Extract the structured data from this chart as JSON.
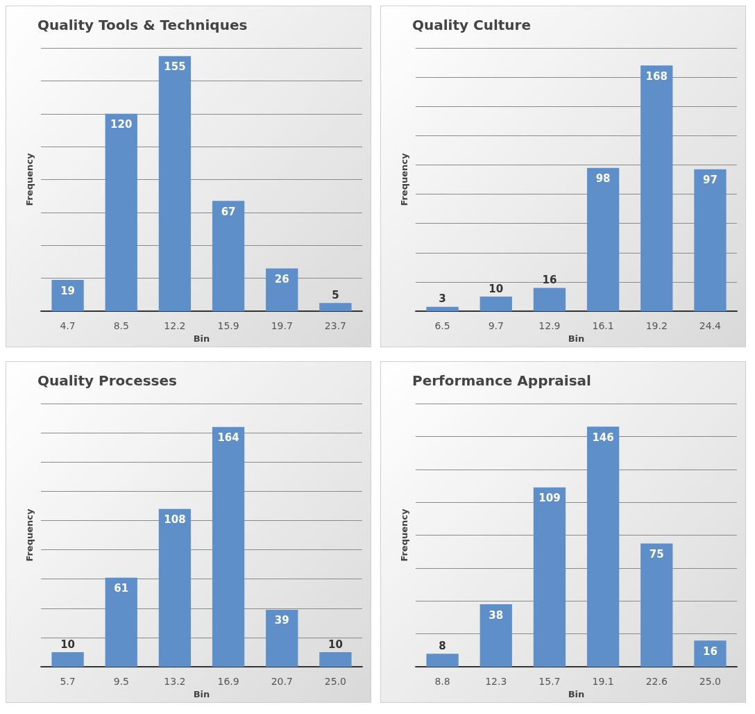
{
  "chart_data": [
    {
      "type": "bar",
      "title": "Quality Tools & Techniques",
      "xlabel": "Bin",
      "ylabel": "Frequency",
      "categories": [
        "4.7",
        "8.5",
        "12.2",
        "15.9",
        "19.7",
        "23.7"
      ],
      "values": [
        19,
        120,
        155,
        67,
        26,
        5
      ],
      "color": "#5f8fc9",
      "ylim": [
        0,
        160
      ],
      "yticks": [
        {
          "value": 0,
          "label": null
        },
        {
          "value": 20,
          "label": null
        },
        {
          "value": 40,
          "label": null
        },
        {
          "value": 60,
          "label": null
        },
        {
          "value": 80,
          "label": null
        },
        {
          "value": 100,
          "label": null
        },
        {
          "value": 120,
          "label": null
        },
        {
          "value": 140,
          "label": null
        },
        {
          "value": 160,
          "label": null
        }
      ],
      "grid": "y",
      "tick_labels": "x",
      "data_labels": true
    },
    {
      "type": "bar",
      "title": "Quality Culture",
      "xlabel": "Bin",
      "ylabel": "Frequency",
      "categories": [
        "6.5",
        "9.7",
        "12.9",
        "16.1",
        "19.2",
        "24.4"
      ],
      "values": [
        3,
        10,
        16,
        98,
        168,
        97
      ],
      "color": "#5f8fc9",
      "ylim": [
        0,
        180
      ],
      "yticks": [
        {
          "value": 0,
          "label": null
        },
        {
          "value": 20,
          "label": null
        },
        {
          "value": 40,
          "label": null
        },
        {
          "value": 60,
          "label": null
        },
        {
          "value": 80,
          "label": null
        },
        {
          "value": 100,
          "label": null
        },
        {
          "value": 120,
          "label": null
        },
        {
          "value": 140,
          "label": null
        },
        {
          "value": 160,
          "label": null
        },
        {
          "value": 180,
          "label": null
        }
      ],
      "grid": "y",
      "tick_labels": "x",
      "data_labels": true
    },
    {
      "type": "bar",
      "title": "Quality Processes",
      "xlabel": "Bin",
      "ylabel": "Frequency",
      "categories": [
        "5.7",
        "9.5",
        "13.2",
        "16.9",
        "20.7",
        "25.0"
      ],
      "values": [
        10,
        61,
        108,
        164,
        39,
        10
      ],
      "color": "#5f8fc9",
      "ylim": [
        0,
        180
      ],
      "yticks": [
        {
          "value": 0,
          "label": null
        },
        {
          "value": 20,
          "label": null
        },
        {
          "value": 40,
          "label": null
        },
        {
          "value": 60,
          "label": null
        },
        {
          "value": 80,
          "label": null
        },
        {
          "value": 100,
          "label": null
        },
        {
          "value": 120,
          "label": null
        },
        {
          "value": 140,
          "label": null
        },
        {
          "value": 160,
          "label": null
        },
        {
          "value": 180,
          "label": null
        }
      ],
      "grid": "y",
      "tick_labels": "x",
      "data_labels": true
    },
    {
      "type": "bar",
      "title": "Performance Appraisal",
      "xlabel": "Bin",
      "ylabel": "Frequency",
      "categories": [
        "8.8",
        "12.3",
        "15.7",
        "19.1",
        "22.6",
        "25.0"
      ],
      "values": [
        8,
        38,
        109,
        146,
        75,
        16
      ],
      "color": "#5f8fc9",
      "ylim": [
        0,
        160
      ],
      "yticks": [
        {
          "value": 0,
          "label": null
        },
        {
          "value": 20,
          "label": null
        },
        {
          "value": 40,
          "label": null
        },
        {
          "value": 60,
          "label": null
        },
        {
          "value": 80,
          "label": null
        },
        {
          "value": 100,
          "label": null
        },
        {
          "value": 120,
          "label": null
        },
        {
          "value": 140,
          "label": null
        },
        {
          "value": 160,
          "label": null
        }
      ],
      "grid": "y",
      "tick_labels": "x",
      "data_labels": true
    }
  ]
}
